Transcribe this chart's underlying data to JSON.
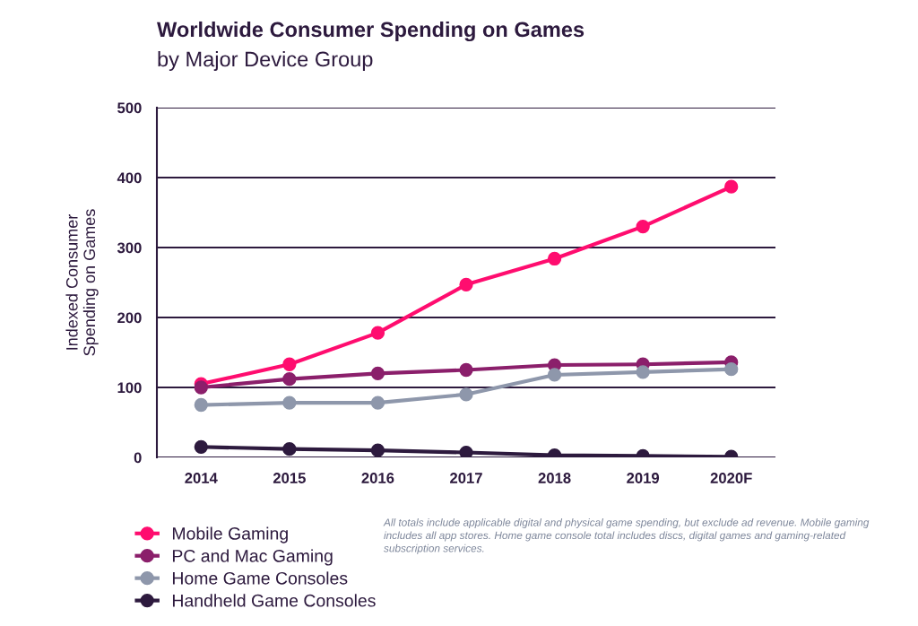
{
  "chart_data": {
    "type": "line",
    "title": "Worldwide Consumer Spending on Games",
    "subtitle": "by Major Device Group",
    "ylabel": "Indexed Consumer\nSpending on Games",
    "categories": [
      "2014",
      "2015",
      "2016",
      "2017",
      "2018",
      "2019",
      "2020F"
    ],
    "series": [
      {
        "name": "Mobile Gaming",
        "color": "#ff0d6f",
        "values": [
          105,
          133,
          178,
          247,
          284,
          330,
          387
        ]
      },
      {
        "name": "PC and Mac Gaming",
        "color": "#8b1f6b",
        "values": [
          100,
          112,
          120,
          125,
          132,
          133,
          136
        ]
      },
      {
        "name": "Home Game Consoles",
        "color": "#8e97ab",
        "values": [
          75,
          78,
          78,
          90,
          118,
          122,
          126
        ]
      },
      {
        "name": "Handheld Game Consoles",
        "color": "#2d1a3e",
        "values": [
          15,
          12,
          10,
          7,
          3,
          2,
          1
        ]
      }
    ],
    "ylim": [
      0,
      500
    ],
    "yticks": [
      0,
      100,
      200,
      300,
      400,
      500
    ],
    "grid": "y",
    "legend": "bottom left",
    "marker": "circle",
    "line_style": "solid",
    "annotations": [
      "All totals include applicable digital and physical game spending, but exclude ad revenue. Mobile gaming\nincludes all app stores. Home game console total includes discs, digital games and gaming-related\nsubscription services."
    ]
  }
}
